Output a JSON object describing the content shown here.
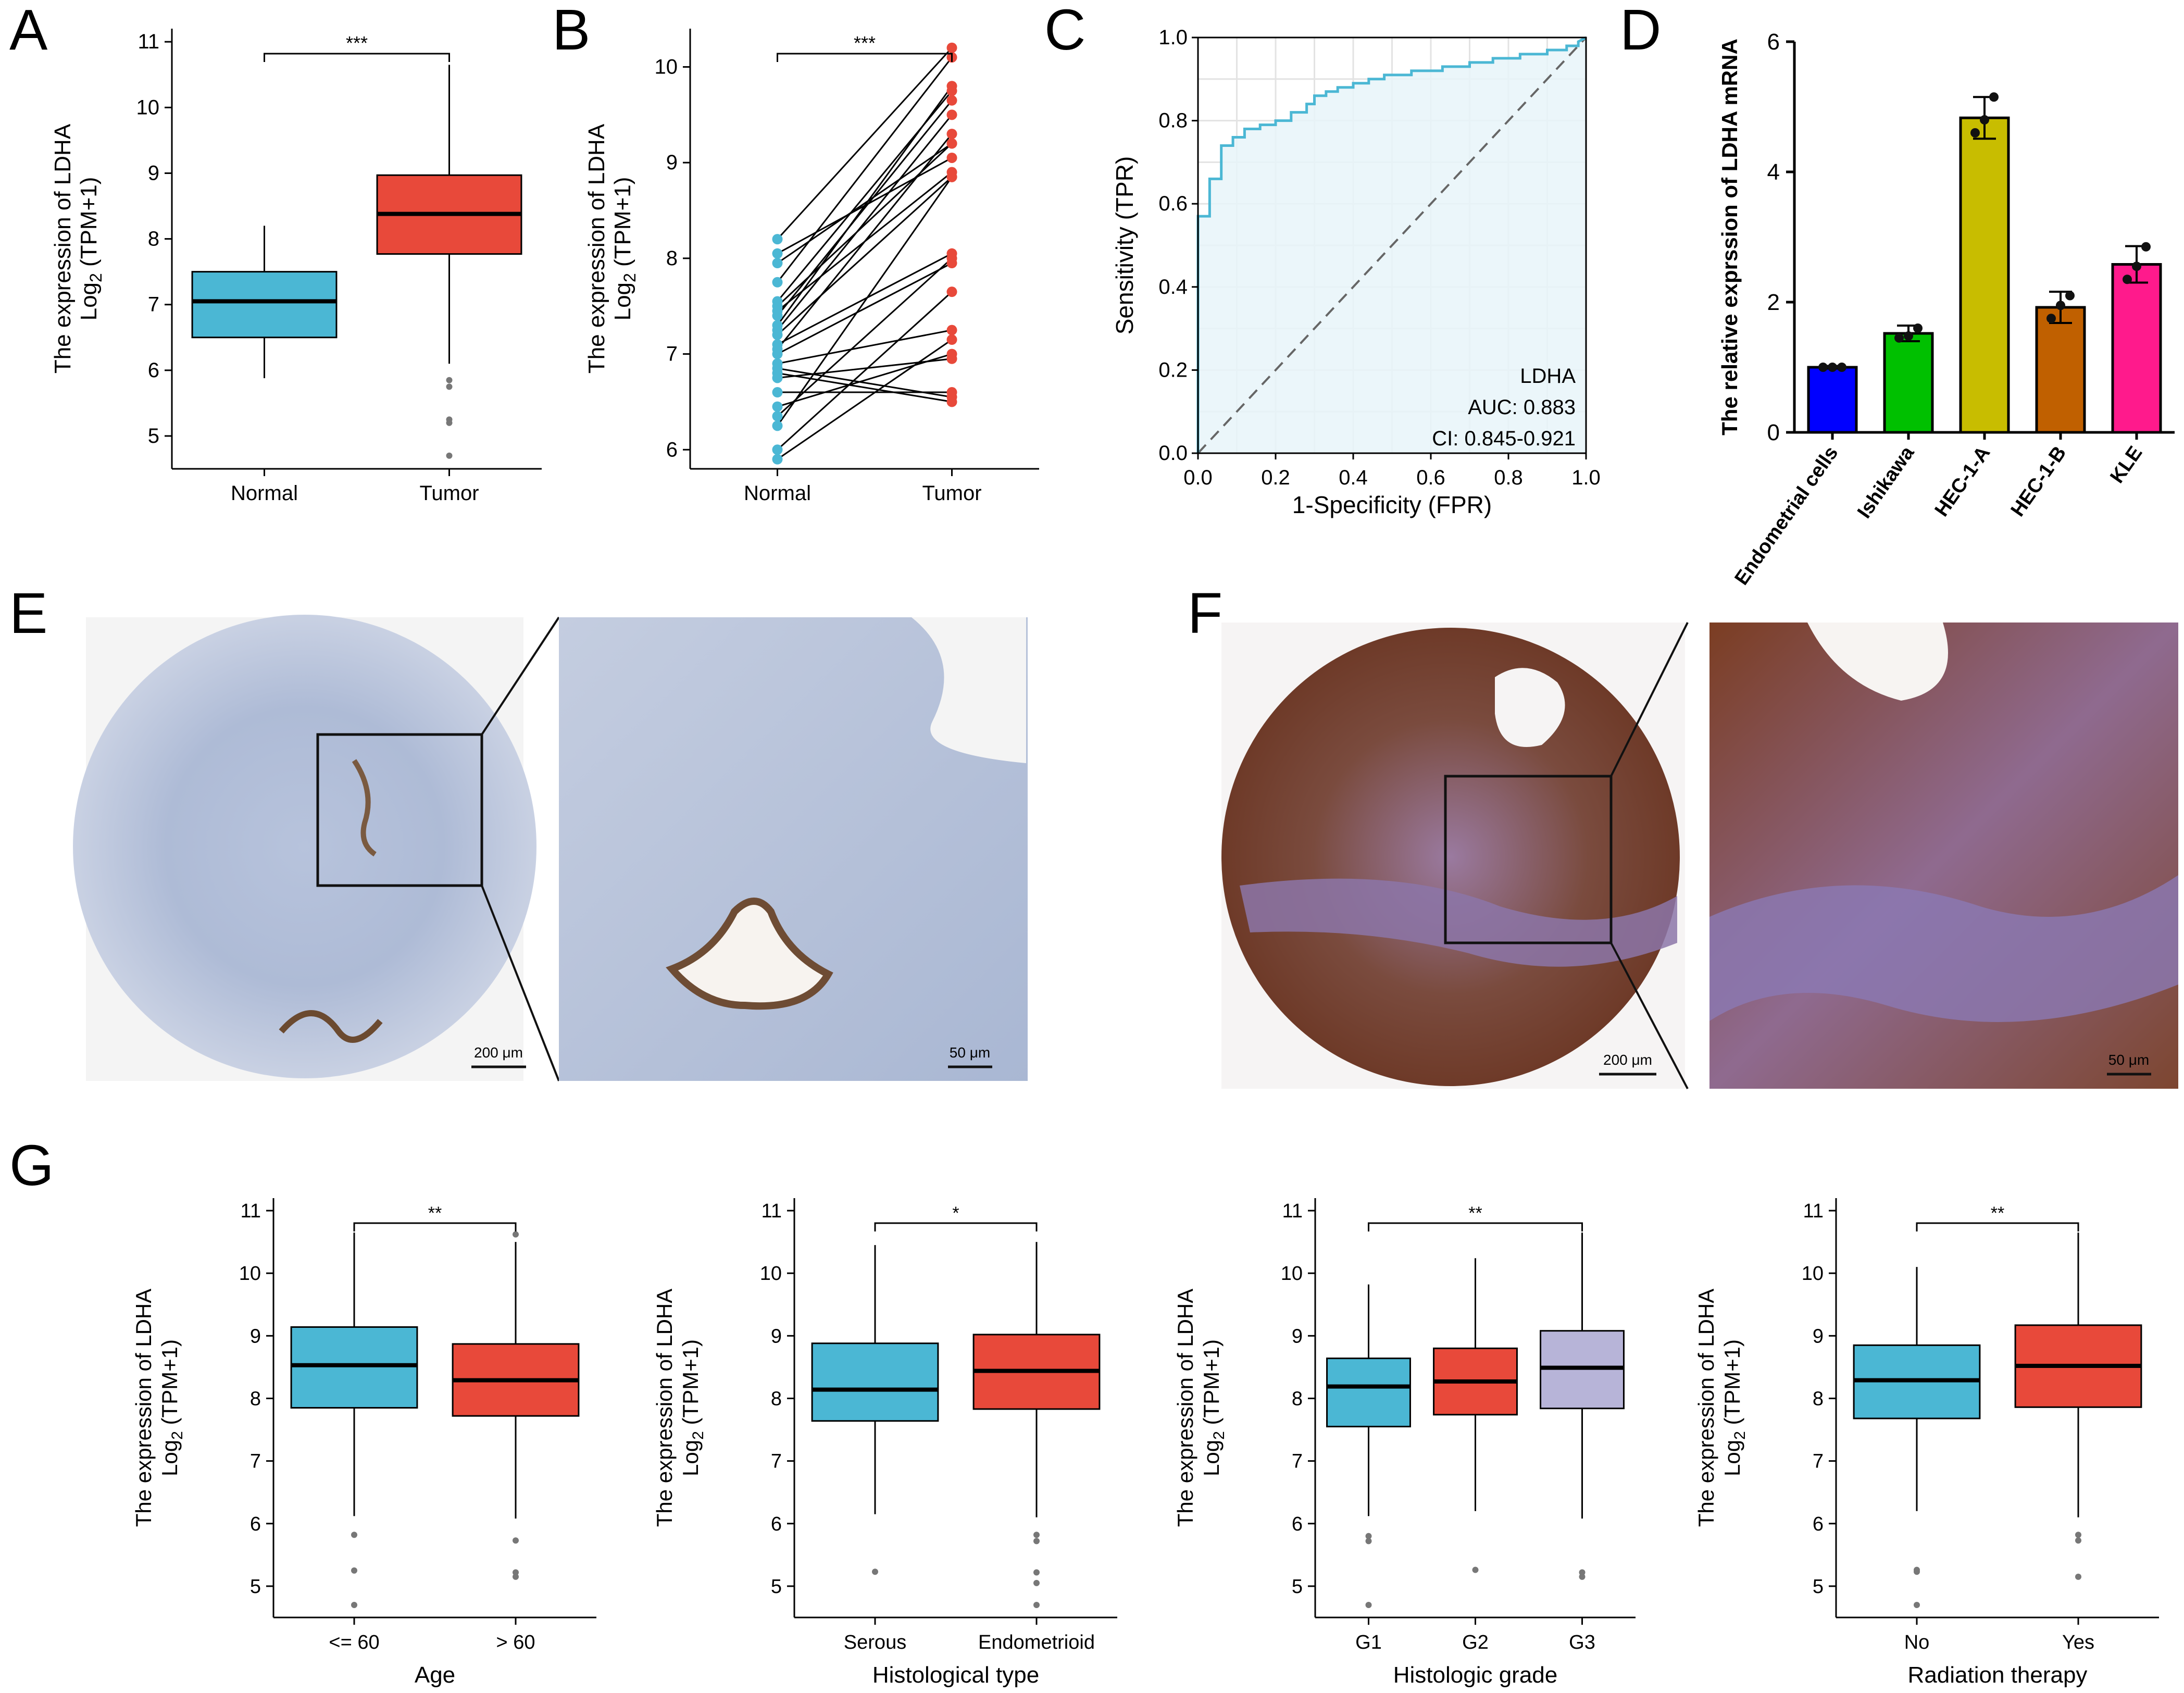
{
  "panel_letters": [
    "A",
    "B",
    "C",
    "D",
    "E",
    "F",
    "G"
  ],
  "colors": {
    "normal": "#4bb7d4",
    "tumor": "#e8493a",
    "g3": "#b7b4d8",
    "roc_line": "#4bb7d4",
    "roc_fill": "#e8f5f9",
    "bar_colors": [
      "#0000ff",
      "#00c000",
      "#c8bd00",
      "#c06000",
      "#ff1a8c"
    ]
  },
  "chart_data": [
    {
      "id": "A",
      "type": "boxplot",
      "categories": [
        "Normal",
        "Tumor"
      ],
      "ylabel_line1": "The expression of LDHA",
      "ylabel_line2": "Log",
      "ylabel_sub": "2",
      "ylabel_line2_tail": " (TPM+1)",
      "ylim": [
        4.5,
        11.2
      ],
      "yticks": [
        5,
        6,
        7,
        8,
        9,
        10,
        11
      ],
      "boxes": [
        {
          "q1": 6.5,
          "median": 7.05,
          "q3": 7.5,
          "whisker_low": 5.88,
          "whisker_high": 8.2,
          "outliers": []
        },
        {
          "q1": 7.77,
          "median": 8.38,
          "q3": 8.97,
          "whisker_low": 6.1,
          "whisker_high": 10.65,
          "outliers": [
            5.85,
            5.75,
            5.25,
            5.2,
            4.7
          ]
        }
      ],
      "significance": "***"
    },
    {
      "id": "B",
      "type": "paired-scatter",
      "categories": [
        "Normal",
        "Tumor"
      ],
      "ylabel_line1": "The expression of LDHA",
      "ylabel_line2": "Log",
      "ylabel_sub": "2",
      "ylabel_line2_tail": " (TPM+1)",
      "ylim": [
        5.8,
        10.4
      ],
      "yticks": [
        6,
        7,
        8,
        9,
        10
      ],
      "pairs": [
        [
          8.2,
          10.2
        ],
        [
          8.05,
          9.05
        ],
        [
          7.95,
          9.2
        ],
        [
          7.75,
          10.1
        ],
        [
          7.55,
          9.75
        ],
        [
          7.5,
          9.2
        ],
        [
          7.45,
          8.9
        ],
        [
          7.4,
          9.65
        ],
        [
          7.3,
          9.8
        ],
        [
          7.25,
          9.5
        ],
        [
          7.2,
          8.85
        ],
        [
          7.1,
          8.05
        ],
        [
          7.05,
          9.3
        ],
        [
          7.0,
          7.95
        ],
        [
          6.9,
          7.25
        ],
        [
          6.85,
          6.55
        ],
        [
          6.8,
          6.5
        ],
        [
          6.75,
          6.95
        ],
        [
          6.6,
          6.6
        ],
        [
          6.45,
          7.0
        ],
        [
          6.35,
          8.0
        ],
        [
          6.25,
          8.85
        ],
        [
          6.0,
          7.65
        ],
        [
          5.9,
          7.15
        ]
      ],
      "significance": "***"
    },
    {
      "id": "C",
      "type": "roc",
      "xlabel": "1-Specificity (FPR)",
      "ylabel": "Sensitivity (TPR)",
      "xlim": [
        0,
        1
      ],
      "ylim": [
        0,
        1
      ],
      "xticks": [
        "0.0",
        "0.2",
        "0.4",
        "0.6",
        "0.8",
        "1.0"
      ],
      "yticks": [
        "0.0",
        "0.2",
        "0.4",
        "0.6",
        "0.8",
        "1.0"
      ],
      "curve": [
        [
          0,
          0
        ],
        [
          0,
          0.57
        ],
        [
          0.03,
          0.57
        ],
        [
          0.03,
          0.66
        ],
        [
          0.06,
          0.66
        ],
        [
          0.06,
          0.74
        ],
        [
          0.09,
          0.74
        ],
        [
          0.09,
          0.76
        ],
        [
          0.12,
          0.76
        ],
        [
          0.12,
          0.78
        ],
        [
          0.16,
          0.78
        ],
        [
          0.16,
          0.79
        ],
        [
          0.2,
          0.79
        ],
        [
          0.2,
          0.8
        ],
        [
          0.24,
          0.8
        ],
        [
          0.24,
          0.82
        ],
        [
          0.28,
          0.82
        ],
        [
          0.28,
          0.84
        ],
        [
          0.3,
          0.84
        ],
        [
          0.3,
          0.86
        ],
        [
          0.33,
          0.86
        ],
        [
          0.33,
          0.87
        ],
        [
          0.36,
          0.87
        ],
        [
          0.36,
          0.88
        ],
        [
          0.4,
          0.88
        ],
        [
          0.4,
          0.89
        ],
        [
          0.44,
          0.89
        ],
        [
          0.44,
          0.9
        ],
        [
          0.48,
          0.9
        ],
        [
          0.48,
          0.91
        ],
        [
          0.55,
          0.91
        ],
        [
          0.55,
          0.92
        ],
        [
          0.63,
          0.92
        ],
        [
          0.63,
          0.93
        ],
        [
          0.7,
          0.93
        ],
        [
          0.7,
          0.94
        ],
        [
          0.76,
          0.94
        ],
        [
          0.76,
          0.95
        ],
        [
          0.83,
          0.95
        ],
        [
          0.83,
          0.96
        ],
        [
          0.9,
          0.96
        ],
        [
          0.9,
          0.97
        ],
        [
          0.95,
          0.97
        ],
        [
          0.95,
          0.98
        ],
        [
          0.98,
          0.98
        ],
        [
          0.98,
          0.99
        ],
        [
          1,
          1
        ]
      ],
      "legend_name": "LDHA",
      "auc_text": "AUC: 0.883",
      "ci_text": "CI: 0.845-0.921"
    },
    {
      "id": "D",
      "type": "bar",
      "ylabel": "The relative exprssion of LDHA mRNA",
      "ylim": [
        0,
        6
      ],
      "yticks": [
        0,
        2,
        4,
        6
      ],
      "categories": [
        "Endometrial cells",
        "Ishikawa",
        "HEC-1-A",
        "HEC-1-B",
        "KLE"
      ],
      "values": [
        1.0,
        1.52,
        4.83,
        1.92,
        2.58
      ],
      "errors": [
        0.02,
        0.12,
        0.32,
        0.24,
        0.28
      ],
      "points": [
        [
          1.0,
          1.0,
          1.0
        ],
        [
          1.45,
          1.48,
          1.6
        ],
        [
          4.6,
          4.8,
          5.15
        ],
        [
          1.75,
          1.95,
          2.1
        ],
        [
          2.35,
          2.55,
          2.85
        ]
      ]
    },
    {
      "id": "G1",
      "type": "boxplot",
      "categories": [
        "<= 60",
        "> 60"
      ],
      "xlabel": "Age",
      "ylabel_line1": "The expression of LDHA",
      "ylabel_line2": "Log",
      "ylabel_sub": "2",
      "ylabel_line2_tail": " (TPM+1)",
      "ylim": [
        4.5,
        11.2
      ],
      "yticks": [
        5,
        6,
        7,
        8,
        9,
        10,
        11
      ],
      "boxes": [
        {
          "q1": 7.85,
          "median": 8.53,
          "q3": 9.14,
          "whisker_low": 6.12,
          "whisker_high": 10.65,
          "outliers": [
            5.82,
            5.25,
            4.7
          ]
        },
        {
          "q1": 7.72,
          "median": 8.29,
          "q3": 8.87,
          "whisker_low": 6.08,
          "whisker_high": 10.5,
          "outliers": [
            10.62,
            5.73,
            5.22,
            5.15
          ]
        }
      ],
      "significance": "**"
    },
    {
      "id": "G2",
      "type": "boxplot",
      "categories": [
        "Serous",
        "Endometrioid"
      ],
      "xlabel": "Histological type",
      "ylabel_line1": "The expression of LDHA",
      "ylabel_line2": "Log",
      "ylabel_sub": "2",
      "ylabel_line2_tail": " (TPM+1)",
      "ylim": [
        4.5,
        11.2
      ],
      "yticks": [
        5,
        6,
        7,
        8,
        9,
        10,
        11
      ],
      "boxes": [
        {
          "q1": 7.64,
          "median": 8.14,
          "q3": 8.88,
          "whisker_low": 6.15,
          "whisker_high": 10.45,
          "outliers": [
            5.23
          ]
        },
        {
          "q1": 7.83,
          "median": 8.44,
          "q3": 9.02,
          "whisker_low": 6.1,
          "whisker_high": 10.5,
          "outliers": [
            5.82,
            5.72,
            5.22,
            5.05,
            4.7
          ]
        }
      ],
      "significance": "*"
    },
    {
      "id": "G3",
      "type": "boxplot",
      "categories": [
        "G1",
        "G2",
        "G3"
      ],
      "xlabel": "Histologic grade",
      "ylabel_line1": "The expression of LDHA",
      "ylabel_line2": "Log",
      "ylabel_sub": "2",
      "ylabel_line2_tail": " (TPM+1)",
      "ylim": [
        4.5,
        11.2
      ],
      "yticks": [
        5,
        6,
        7,
        8,
        9,
        10,
        11
      ],
      "boxes": [
        {
          "q1": 7.55,
          "median": 8.19,
          "q3": 8.64,
          "whisker_low": 6.12,
          "whisker_high": 9.82,
          "outliers": [
            5.8,
            5.72,
            4.7
          ]
        },
        {
          "q1": 7.74,
          "median": 8.27,
          "q3": 8.8,
          "whisker_low": 6.2,
          "whisker_high": 10.24,
          "outliers": [
            5.26
          ]
        },
        {
          "q1": 7.84,
          "median": 8.49,
          "q3": 9.08,
          "whisker_low": 6.08,
          "whisker_high": 10.65,
          "outliers": [
            5.22,
            5.15
          ]
        }
      ],
      "significance": "**",
      "sig_span": [
        0,
        2
      ]
    },
    {
      "id": "G4",
      "type": "boxplot",
      "categories": [
        "No",
        "Yes"
      ],
      "xlabel": "Radiation therapy",
      "ylabel_line1": "The expression of LDHA",
      "ylabel_line2": "Log",
      "ylabel_sub": "2",
      "ylabel_line2_tail": " (TPM+1)",
      "ylim": [
        4.5,
        11.2
      ],
      "yticks": [
        5,
        6,
        7,
        8,
        9,
        10,
        11
      ],
      "boxes": [
        {
          "q1": 7.68,
          "median": 8.29,
          "q3": 8.85,
          "whisker_low": 6.2,
          "whisker_high": 10.1,
          "outliers": [
            5.26,
            5.23,
            4.7
          ]
        },
        {
          "q1": 7.86,
          "median": 8.52,
          "q3": 9.17,
          "whisker_low": 6.1,
          "whisker_high": 10.65,
          "outliers": [
            5.82,
            5.73,
            5.15
          ]
        }
      ],
      "significance": "**"
    }
  ],
  "ihc": {
    "scale_large": "200 μm",
    "scale_small": "50 μm"
  }
}
